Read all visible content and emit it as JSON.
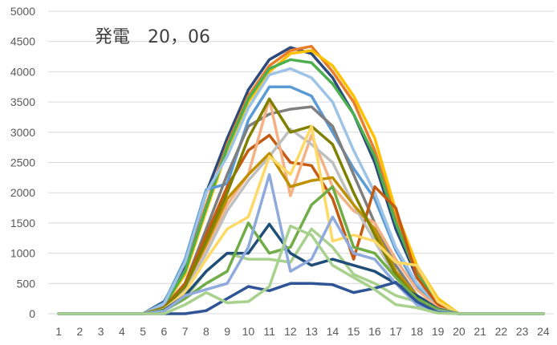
{
  "chart_data": {
    "type": "line",
    "title": "発電　20，06",
    "xlabel": "",
    "ylabel": "",
    "categories": [
      "1",
      "2",
      "3",
      "4",
      "5",
      "6",
      "7",
      "8",
      "9",
      "10",
      "11",
      "12",
      "13",
      "14",
      "15",
      "16",
      "17",
      "18",
      "19",
      "20",
      "21",
      "22",
      "23",
      "24"
    ],
    "ylim": [
      0,
      5000
    ],
    "yticks": [
      0,
      500,
      1000,
      1500,
      2000,
      2500,
      3000,
      3500,
      4000,
      4500,
      5000
    ],
    "grid": true,
    "legend": "none",
    "series": [
      {
        "color": "#2e4a7a",
        "values": [
          0,
          0,
          0,
          0,
          0,
          200,
          800,
          2000,
          2900,
          3700,
          4200,
          4400,
          4300,
          3900,
          3300,
          2500,
          1400,
          600,
          200,
          0,
          0,
          0,
          0,
          0
        ]
      },
      {
        "color": "#e87d2c",
        "values": [
          0,
          0,
          0,
          0,
          0,
          150,
          700,
          1800,
          2800,
          3600,
          4100,
          4350,
          4420,
          4000,
          3500,
          2700,
          1600,
          700,
          200,
          0,
          0,
          0,
          0,
          0
        ]
      },
      {
        "color": "#ffc000",
        "values": [
          0,
          0,
          0,
          0,
          0,
          120,
          650,
          1700,
          2700,
          3500,
          4000,
          4300,
          4350,
          4100,
          3600,
          2900,
          1700,
          800,
          250,
          0,
          0,
          0,
          0,
          0
        ]
      },
      {
        "color": "#4caf50",
        "values": [
          0,
          0,
          0,
          0,
          0,
          130,
          700,
          1750,
          2750,
          3550,
          4050,
          4200,
          4150,
          3800,
          3300,
          2600,
          1500,
          650,
          200,
          0,
          0,
          0,
          0,
          0
        ]
      },
      {
        "color": "#5b9bd5",
        "values": [
          0,
          0,
          0,
          0,
          0,
          180,
          900,
          2050,
          2150,
          3200,
          3750,
          3750,
          3600,
          3000,
          2400,
          1900,
          1050,
          450,
          100,
          0,
          0,
          0,
          0,
          0
        ]
      },
      {
        "color": "#9dc3e6",
        "values": [
          0,
          0,
          0,
          0,
          0,
          160,
          850,
          2000,
          2600,
          3400,
          3950,
          4050,
          3900,
          3500,
          2700,
          2000,
          1100,
          500,
          150,
          0,
          0,
          0,
          0,
          0
        ]
      },
      {
        "color": "#7f7f7f",
        "values": [
          0,
          0,
          0,
          0,
          0,
          100,
          500,
          1400,
          2300,
          3100,
          3300,
          3380,
          3420,
          3100,
          2300,
          1500,
          800,
          300,
          100,
          0,
          0,
          0,
          0,
          0
        ]
      },
      {
        "color": "#c55a11",
        "values": [
          0,
          0,
          0,
          0,
          0,
          100,
          500,
          1300,
          2100,
          2700,
          2950,
          2500,
          2450,
          1900,
          900,
          2100,
          1750,
          600,
          150,
          0,
          0,
          0,
          0,
          0
        ]
      },
      {
        "color": "#f4b183",
        "values": [
          0,
          0,
          0,
          0,
          0,
          80,
          450,
          1100,
          1800,
          2300,
          3550,
          1950,
          2950,
          2100,
          1700,
          1500,
          900,
          400,
          100,
          0,
          0,
          0,
          0,
          0
        ]
      },
      {
        "color": "#bfbfbf",
        "values": [
          0,
          0,
          0,
          0,
          0,
          80,
          400,
          1000,
          1700,
          2200,
          2600,
          3050,
          2800,
          2500,
          1800,
          1200,
          600,
          250,
          80,
          0,
          0,
          0,
          0,
          0
        ]
      },
      {
        "color": "#bf9000",
        "values": [
          0,
          0,
          0,
          0,
          0,
          90,
          450,
          1150,
          1900,
          2300,
          2650,
          2100,
          2200,
          2250,
          1800,
          1400,
          700,
          300,
          80,
          0,
          0,
          0,
          0,
          0
        ]
      },
      {
        "color": "#808000",
        "values": [
          0,
          0,
          0,
          0,
          0,
          90,
          450,
          1200,
          2000,
          2900,
          3550,
          3000,
          3100,
          2800,
          2000,
          1300,
          650,
          250,
          60,
          0,
          0,
          0,
          0,
          0
        ]
      },
      {
        "color": "#ffd966",
        "values": [
          0,
          0,
          0,
          0,
          0,
          70,
          350,
          900,
          1400,
          1600,
          2600,
          2300,
          3100,
          1200,
          1300,
          1200,
          850,
          800,
          200,
          0,
          0,
          0,
          0,
          0
        ]
      },
      {
        "color": "#a9d18e",
        "values": [
          0,
          0,
          0,
          0,
          0,
          50,
          250,
          700,
          1000,
          900,
          900,
          850,
          1400,
          1100,
          650,
          500,
          300,
          200,
          50,
          0,
          0,
          0,
          0,
          0
        ]
      },
      {
        "color": "#1f4e79",
        "values": [
          0,
          0,
          0,
          0,
          0,
          60,
          300,
          700,
          1000,
          1000,
          1480,
          1000,
          800,
          900,
          800,
          700,
          500,
          300,
          80,
          0,
          0,
          0,
          0,
          0
        ]
      },
      {
        "color": "#70ad47",
        "values": [
          0,
          0,
          0,
          0,
          0,
          50,
          250,
          500,
          700,
          1500,
          1000,
          1100,
          1800,
          2100,
          1100,
          1000,
          600,
          250,
          70,
          0,
          0,
          0,
          0,
          0
        ]
      },
      {
        "color": "#8faadc",
        "values": [
          0,
          0,
          0,
          0,
          0,
          40,
          300,
          400,
          500,
          1100,
          2300,
          700,
          900,
          1600,
          1000,
          900,
          500,
          150,
          40,
          0,
          0,
          0,
          0,
          0
        ]
      },
      {
        "color": "#2f5597",
        "values": [
          0,
          0,
          0,
          0,
          0,
          0,
          0,
          50,
          250,
          450,
          380,
          500,
          500,
          480,
          350,
          420,
          520,
          200,
          20,
          0,
          0,
          0,
          0,
          0
        ]
      },
      {
        "color": "#a9d18e",
        "values": [
          0,
          0,
          0,
          0,
          0,
          0,
          150,
          350,
          180,
          200,
          450,
          1450,
          1300,
          800,
          600,
          400,
          150,
          100,
          10,
          0,
          0,
          0,
          0,
          0
        ]
      }
    ]
  }
}
